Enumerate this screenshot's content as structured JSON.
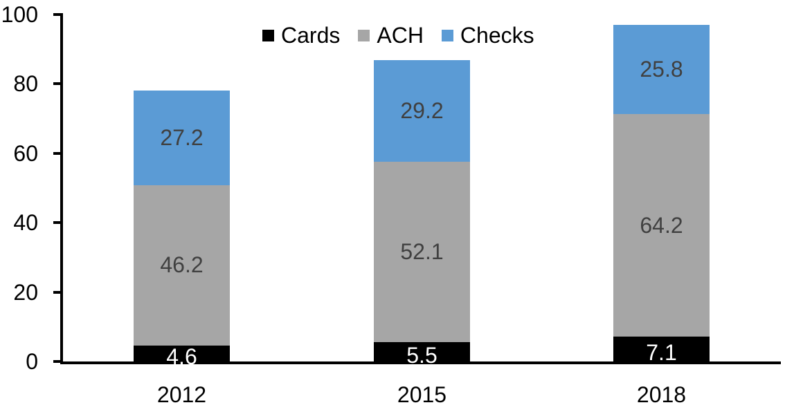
{
  "chart_data": {
    "type": "bar",
    "stacked": true,
    "title": "",
    "categories": [
      "2012",
      "2015",
      "2018"
    ],
    "series": [
      {
        "name": "Cards",
        "color": "#000000",
        "label_color": "#FFFFFF",
        "values": [
          4.6,
          5.5,
          7.1
        ]
      },
      {
        "name": "ACH",
        "color": "#A6A6A6",
        "label_color": "#404040",
        "values": [
          46.2,
          52.1,
          64.2
        ]
      },
      {
        "name": "Checks",
        "color": "#5B9BD5",
        "label_color": "#404040",
        "values": [
          27.2,
          29.2,
          25.8
        ]
      }
    ],
    "totals": [
      78.0,
      86.8,
      97.1
    ],
    "y_axis": {
      "min": 0,
      "max": 100,
      "step": 20,
      "ticks": [
        "0",
        "20",
        "40",
        "60",
        "80",
        "100"
      ],
      "tick_values": [
        0,
        20,
        40,
        60,
        80,
        100
      ],
      "grid": false
    },
    "legend": {
      "position": "top",
      "entries": [
        "Cards",
        "ACH",
        "Checks"
      ]
    },
    "axis_color": "#000000",
    "background": "#FFFFFF"
  }
}
